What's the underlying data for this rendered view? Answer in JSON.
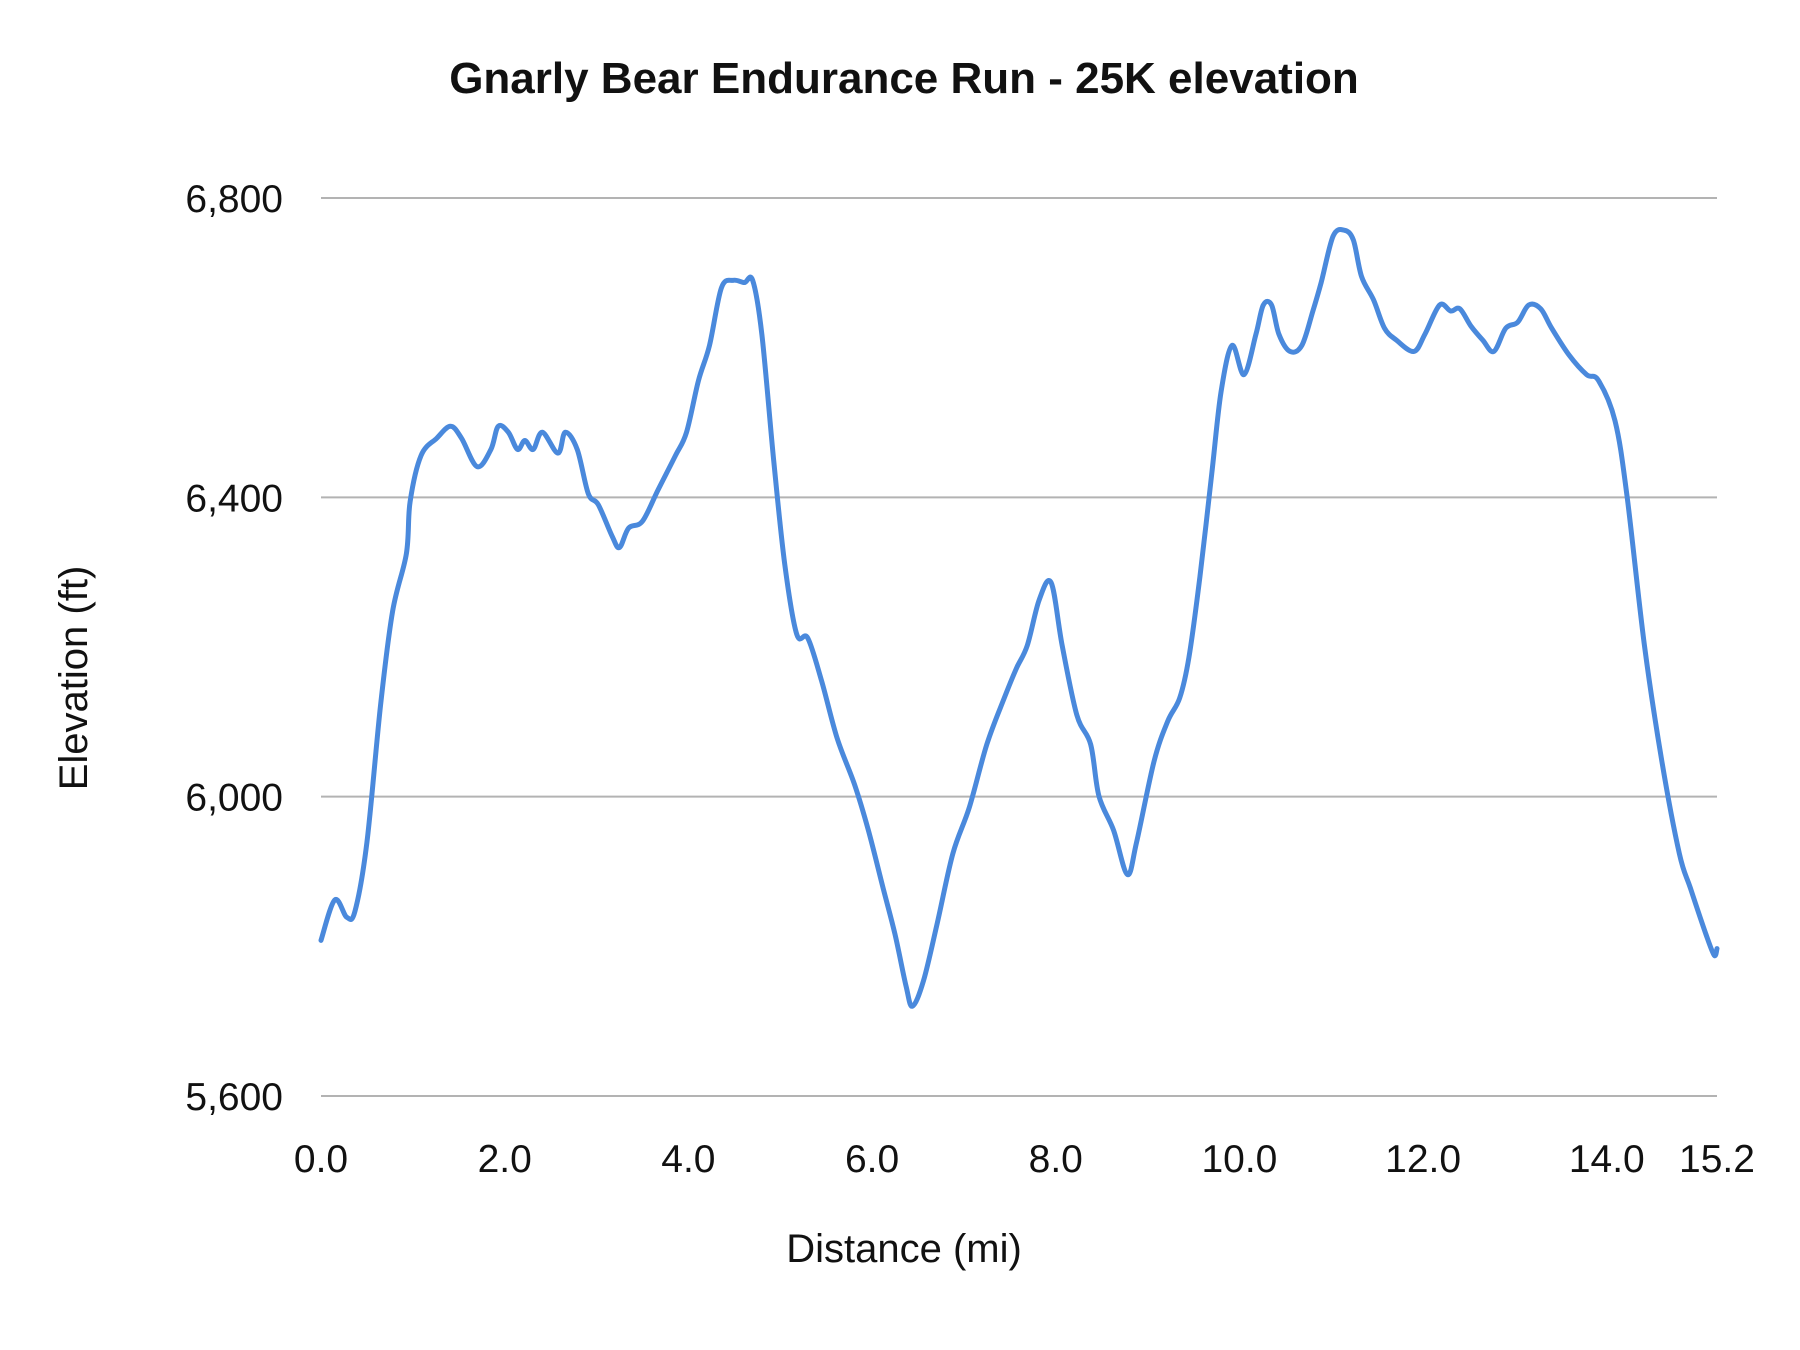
{
  "chart_data": {
    "type": "line",
    "title": "Gnarly Bear Endurance Run - 25K elevation",
    "xlabel": "Distance (mi)",
    "ylabel": "Elevation (ft)",
    "xlim": [
      0,
      15.2
    ],
    "ylim": [
      5600,
      6800
    ],
    "x_ticks": [
      0,
      2,
      4,
      6,
      8,
      10,
      12,
      14,
      15.2
    ],
    "x_tick_labels": [
      "0.0",
      "2.0",
      "4.0",
      "6.0",
      "8.0",
      "10.0",
      "12.0",
      "14.0",
      "15.2"
    ],
    "y_ticks": [
      5600,
      6000,
      6400,
      6800
    ],
    "y_tick_labels": [
      "5,600",
      "6,000",
      "6,400",
      "6,800"
    ],
    "grid": "horizontal",
    "legend": "none",
    "line_color": "#4a89dc",
    "grid_color": "#b3b3b3",
    "series": [
      {
        "x": [
          0.0,
          0.15,
          0.28,
          0.37,
          0.5,
          0.65,
          0.78,
          0.93,
          0.97,
          1.09,
          1.26,
          1.41,
          1.53,
          1.7,
          1.85,
          1.93,
          2.04,
          2.14,
          2.22,
          2.31,
          2.41,
          2.58,
          2.66,
          2.79,
          2.91,
          3.02,
          3.17,
          3.25,
          3.35,
          3.5,
          3.67,
          3.86,
          3.98,
          4.11,
          4.23,
          4.36,
          4.49,
          4.61,
          4.7,
          4.8,
          4.93,
          5.05,
          5.18,
          5.3,
          5.45,
          5.62,
          5.81,
          5.96,
          6.12,
          6.25,
          6.37,
          6.44,
          6.56,
          6.71,
          6.88,
          7.06,
          7.25,
          7.44,
          7.57,
          7.69,
          7.82,
          7.95,
          8.07,
          8.23,
          8.38,
          8.47,
          8.63,
          8.78,
          8.88,
          9.07,
          9.22,
          9.35,
          9.45,
          9.57,
          9.7,
          9.8,
          9.92,
          10.05,
          10.18,
          10.26,
          10.35,
          10.43,
          10.55,
          10.68,
          10.8,
          10.89,
          11.02,
          11.14,
          11.24,
          11.33,
          11.46,
          11.58,
          11.71,
          11.9,
          12.02,
          12.18,
          12.3,
          12.4,
          12.52,
          12.65,
          12.77,
          12.9,
          13.03,
          13.15,
          13.28,
          13.4,
          13.59,
          13.78,
          13.91,
          14.09,
          14.22,
          14.41,
          14.6,
          14.79,
          14.91,
          15.08,
          15.17,
          15.2
        ],
        "y": [
          5808,
          5862,
          5839,
          5847,
          5939,
          6124,
          6248,
          6325,
          6394,
          6456,
          6479,
          6495,
          6479,
          6441,
          6464,
          6495,
          6487,
          6464,
          6476,
          6464,
          6487,
          6459,
          6487,
          6464,
          6405,
          6390,
          6348,
          6333,
          6359,
          6368,
          6410,
          6456,
          6487,
          6556,
          6603,
          6680,
          6690,
          6687,
          6690,
          6618,
          6448,
          6310,
          6217,
          6212,
          6155,
          6078,
          6016,
          5955,
          5878,
          5816,
          5747,
          5720,
          5754,
          5831,
          5924,
          5986,
          6070,
          6132,
          6171,
          6202,
          6263,
          6286,
          6202,
          6109,
          6070,
          6001,
          5955,
          5896,
          5939,
          6047,
          6101,
          6132,
          6186,
          6294,
          6433,
          6541,
          6603,
          6564,
          6618,
          6657,
          6657,
          6618,
          6595,
          6603,
          6649,
          6687,
          6749,
          6757,
          6744,
          6695,
          6664,
          6626,
          6610,
          6595,
          6618,
          6657,
          6649,
          6652,
          6629,
          6610,
          6595,
          6626,
          6634,
          6657,
          6652,
          6626,
          6590,
          6564,
          6556,
          6502,
          6402,
          6202,
          6047,
          5924,
          5878,
          5816,
          5788,
          5797
        ]
      }
    ]
  }
}
